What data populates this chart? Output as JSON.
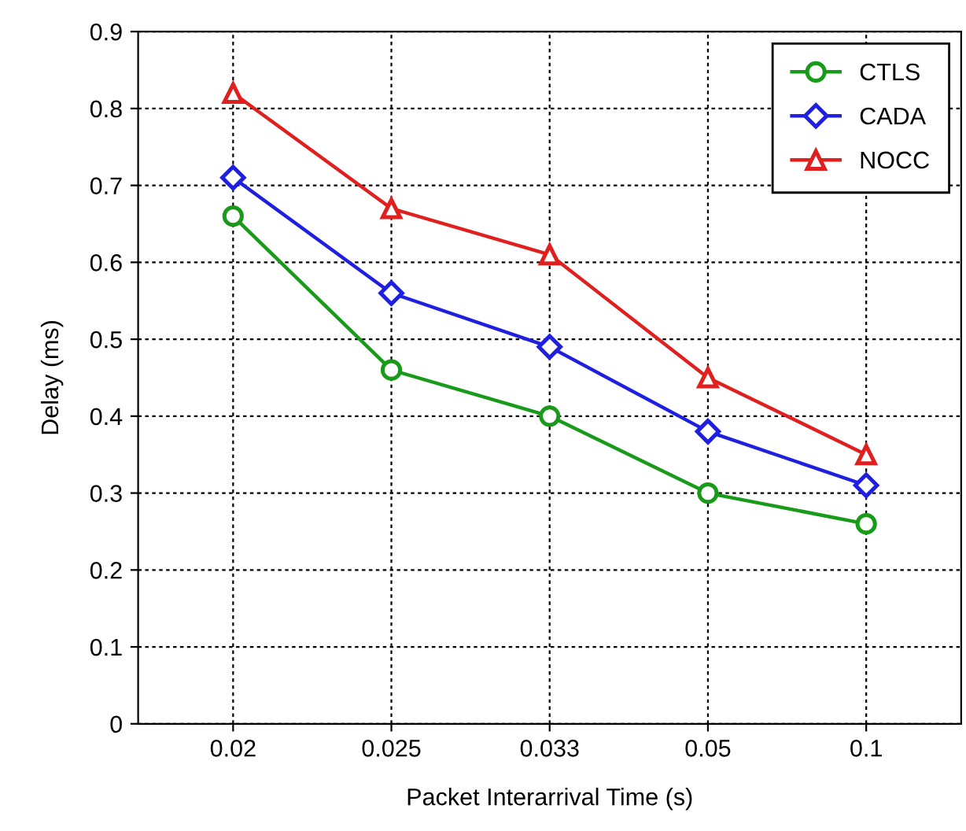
{
  "chart_data": {
    "type": "line",
    "xlabel": "Packet Interarrival Time (s)",
    "ylabel": "Delay (ms)",
    "categories": [
      "0.02",
      "0.025",
      "0.033",
      "0.05",
      "0.1"
    ],
    "series": [
      {
        "name": "CTLS",
        "color": "#1a9a1a",
        "marker": "circle",
        "values": [
          0.66,
          0.46,
          0.4,
          0.3,
          0.26
        ]
      },
      {
        "name": "CADA",
        "color": "#1f1fe0",
        "marker": "diamond",
        "values": [
          0.71,
          0.56,
          0.49,
          0.38,
          0.31
        ]
      },
      {
        "name": "NOCC",
        "color": "#e01f1f",
        "marker": "triangle",
        "values": [
          0.82,
          0.67,
          0.61,
          0.45,
          0.35
        ]
      }
    ],
    "ylim": [
      0,
      0.9
    ],
    "yticks": [
      0,
      0.1,
      0.2,
      0.3,
      0.4,
      0.5,
      0.6,
      0.7,
      0.8,
      0.9
    ],
    "grid": true,
    "legend": "top right",
    "line_style": "solid"
  }
}
